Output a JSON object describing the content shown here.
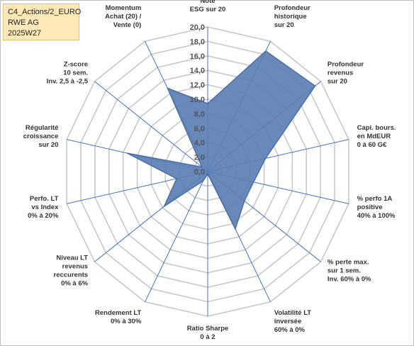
{
  "header": {
    "line1": "C4_Actions/2_EURO",
    "line2": "RWE AG",
    "line3": "2025W27"
  },
  "chart_data": {
    "type": "radar",
    "title": "",
    "rmin": 0,
    "rmax": 20,
    "ticks": [
      "0,0",
      "2,0",
      "4,0",
      "6,0",
      "8,0",
      "10,0",
      "12,0",
      "14,0",
      "16,0",
      "18,0",
      "20,0"
    ],
    "tick_values": [
      0,
      2,
      4,
      6,
      8,
      10,
      12,
      14,
      16,
      18,
      20
    ],
    "axes": [
      [
        "Note",
        "ESG sur 20"
      ],
      [
        "Profondeur",
        "historique",
        "sur 20"
      ],
      [
        "Profondeur",
        "revenus",
        "sur 20"
      ],
      [
        "Capi. bours.",
        "en MdEUR",
        "0 à 60 G€"
      ],
      [
        "% perfo 1A",
        "positive",
        "40% à 100%"
      ],
      [
        "% perte max.",
        "sur 1 sem.",
        "Inv. 60% à 0%"
      ],
      [
        "Volatilité LT",
        "inversée",
        "60% à 0%"
      ],
      [
        "Ratio Sharpe",
        "0 à 2"
      ],
      [
        "Rendement LT",
        "0% à 30%"
      ],
      [
        "Niveau LT",
        "revenus",
        "reccurents",
        "0% à 6%"
      ],
      [
        "Perfo. LT",
        "vs Index",
        "0% à 20%"
      ],
      [
        "Régularité",
        "croissance",
        "sur 20"
      ],
      [
        "Z-score",
        "10 sem.",
        "Inv. 2,5 à -2,5"
      ],
      [
        "Momentum",
        "Achat (20) /",
        "Vente (0)"
      ]
    ],
    "series": [
      {
        "values": [
          9.4,
          18.5,
          19.0,
          8.2,
          6.5,
          6.5,
          8.8,
          0.3,
          1.4,
          7.7,
          4.4,
          11.4,
          1.0,
          12.8
        ]
      }
    ],
    "fill_color": "#5b7fb3",
    "stroke_color": "#4a6ea8",
    "grid": true,
    "gridlines": "polygon"
  }
}
